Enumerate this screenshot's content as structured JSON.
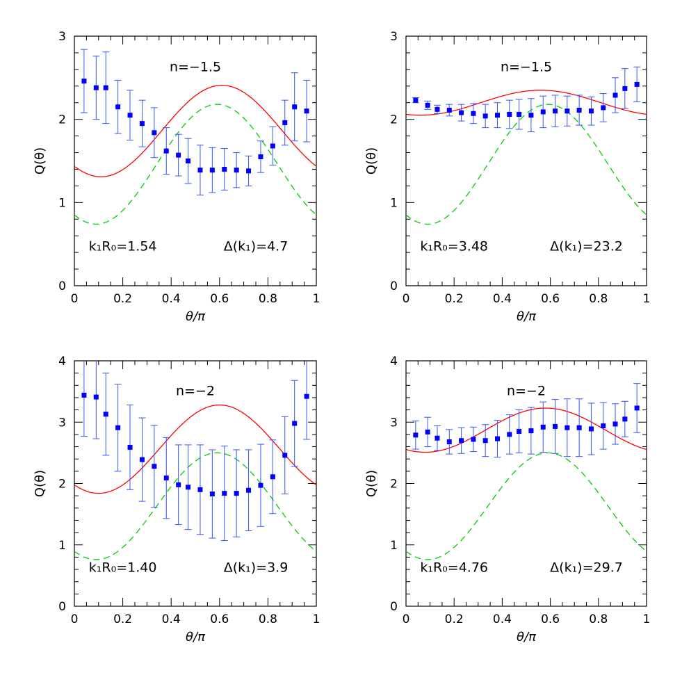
{
  "chart_data": [
    {
      "type": "scatter",
      "annotation_n": "n=−1.5",
      "annotation_kR": "k₁R₀=1.54",
      "annotation_delta": "Δ(k₁)=4.7",
      "xlabel": "θ/π",
      "ylabel": "Q(θ)",
      "xlim": [
        0,
        1
      ],
      "ylim": [
        0,
        3
      ],
      "xticks": [
        "0",
        "0.2",
        "0.4",
        "0.6",
        "0.8",
        "1"
      ],
      "yticks": [
        "0",
        "1",
        "2",
        "3"
      ],
      "ytick_values": [
        0,
        1,
        2,
        3
      ],
      "grid": false,
      "series": [
        {
          "kind": "points_with_errorbars",
          "color": "#0000ff",
          "x": [
            0.04,
            0.09,
            0.13,
            0.18,
            0.23,
            0.28,
            0.33,
            0.38,
            0.43,
            0.47,
            0.52,
            0.57,
            0.62,
            0.67,
            0.72,
            0.77,
            0.82,
            0.87,
            0.91,
            0.96
          ],
          "y": [
            2.46,
            2.38,
            2.38,
            2.15,
            2.05,
            1.95,
            1.84,
            1.62,
            1.57,
            1.5,
            1.39,
            1.39,
            1.4,
            1.39,
            1.38,
            1.55,
            1.68,
            1.96,
            2.15,
            2.1
          ],
          "err": [
            0.38,
            0.38,
            0.43,
            0.32,
            0.3,
            0.28,
            0.3,
            0.28,
            0.25,
            0.27,
            0.3,
            0.27,
            0.25,
            0.21,
            0.18,
            0.19,
            0.23,
            0.27,
            0.41,
            0.37
          ]
        },
        {
          "kind": "line",
          "color": "#ff0000",
          "dashed": false,
          "form": "cos",
          "A": 1.86,
          "B": 0.55,
          "x0": 0.61
        },
        {
          "kind": "line",
          "color": "#00cc00",
          "dashed": true,
          "form": "cos",
          "A": 1.46,
          "B": 0.72,
          "x0": 0.59
        }
      ]
    },
    {
      "type": "scatter",
      "annotation_n": "n=−1.5",
      "annotation_kR": "k₁R₀=3.48",
      "annotation_delta": "Δ(k₁)=23.2",
      "xlabel": "θ/π",
      "ylabel": "Q(θ)",
      "xlim": [
        0,
        1
      ],
      "ylim": [
        0,
        3
      ],
      "xticks": [
        "0",
        "0.2",
        "0.4",
        "0.6",
        "0.8",
        "1"
      ],
      "yticks": [
        "0",
        "1",
        "2",
        "3"
      ],
      "ytick_values": [
        0,
        1,
        2,
        3
      ],
      "grid": false,
      "series": [
        {
          "kind": "points_with_errorbars",
          "color": "#0000ff",
          "x": [
            0.04,
            0.09,
            0.13,
            0.18,
            0.23,
            0.28,
            0.33,
            0.38,
            0.43,
            0.47,
            0.52,
            0.57,
            0.62,
            0.67,
            0.72,
            0.77,
            0.82,
            0.87,
            0.91,
            0.96
          ],
          "y": [
            2.23,
            2.17,
            2.12,
            2.11,
            2.08,
            2.07,
            2.04,
            2.05,
            2.06,
            2.06,
            2.05,
            2.09,
            2.1,
            2.1,
            2.11,
            2.1,
            2.14,
            2.29,
            2.37,
            2.42
          ],
          "err": [
            0.03,
            0.05,
            0.05,
            0.07,
            0.1,
            0.12,
            0.14,
            0.15,
            0.17,
            0.18,
            0.2,
            0.19,
            0.19,
            0.18,
            0.18,
            0.17,
            0.17,
            0.21,
            0.24,
            0.21
          ]
        },
        {
          "kind": "line",
          "color": "#ff0000",
          "dashed": false,
          "form": "cos",
          "A": 2.2,
          "B": 0.15,
          "x0": 0.56
        },
        {
          "kind": "line",
          "color": "#00cc00",
          "dashed": true,
          "form": "cos",
          "A": 1.46,
          "B": 0.72,
          "x0": 0.59
        }
      ]
    },
    {
      "type": "scatter",
      "annotation_n": "n=−2",
      "annotation_kR": "k₁R₀=1.40",
      "annotation_delta": "Δ(k₁)=3.9",
      "xlabel": "θ/π",
      "ylabel": "Q(θ)",
      "xlim": [
        0,
        1
      ],
      "ylim": [
        0,
        4
      ],
      "xticks": [
        "0",
        "0.2",
        "0.4",
        "0.6",
        "0.8",
        "1"
      ],
      "yticks": [
        "0",
        "1",
        "2",
        "3",
        "4"
      ],
      "ytick_values": [
        0,
        1,
        2,
        3,
        4
      ],
      "grid": false,
      "series": [
        {
          "kind": "points_with_errorbars",
          "color": "#0000ff",
          "x": [
            0.04,
            0.09,
            0.13,
            0.18,
            0.23,
            0.28,
            0.33,
            0.38,
            0.43,
            0.47,
            0.52,
            0.57,
            0.62,
            0.67,
            0.72,
            0.77,
            0.82,
            0.87,
            0.91,
            0.96
          ],
          "y": [
            3.44,
            3.41,
            3.13,
            2.91,
            2.59,
            2.39,
            2.28,
            2.09,
            1.98,
            1.94,
            1.9,
            1.83,
            1.84,
            1.84,
            1.89,
            1.97,
            2.11,
            2.46,
            2.98,
            3.42
          ],
          "err": [
            0.67,
            0.68,
            0.67,
            0.71,
            0.69,
            0.68,
            0.67,
            0.66,
            0.65,
            0.69,
            0.73,
            0.72,
            0.77,
            0.71,
            0.66,
            0.67,
            0.6,
            0.63,
            0.7,
            0.7
          ]
        },
        {
          "kind": "line",
          "color": "#ff0000",
          "dashed": false,
          "form": "cos",
          "A": 2.56,
          "B": 0.72,
          "x0": 0.6
        },
        {
          "kind": "line",
          "color": "#00cc00",
          "dashed": true,
          "form": "cos",
          "A": 1.63,
          "B": 0.87,
          "x0": 0.59
        }
      ]
    },
    {
      "type": "scatter",
      "annotation_n": "n=−2",
      "annotation_kR": "k₁R₀=4.76",
      "annotation_delta": "Δ(k₁)=29.7",
      "xlabel": "θ/π",
      "ylabel": "Q(θ)",
      "xlim": [
        0,
        1
      ],
      "ylim": [
        0,
        4
      ],
      "xticks": [
        "0",
        "0.2",
        "0.4",
        "0.6",
        "0.8",
        "1"
      ],
      "yticks": [
        "0",
        "1",
        "2",
        "3",
        "4"
      ],
      "ytick_values": [
        0,
        1,
        2,
        3,
        4
      ],
      "grid": false,
      "series": [
        {
          "kind": "points_with_errorbars",
          "color": "#0000ff",
          "x": [
            0.04,
            0.09,
            0.13,
            0.18,
            0.23,
            0.28,
            0.33,
            0.38,
            0.43,
            0.47,
            0.52,
            0.57,
            0.62,
            0.67,
            0.72,
            0.77,
            0.82,
            0.87,
            0.91,
            0.96
          ],
          "y": [
            2.79,
            2.84,
            2.74,
            2.68,
            2.7,
            2.72,
            2.7,
            2.73,
            2.8,
            2.85,
            2.86,
            2.92,
            2.93,
            2.91,
            2.91,
            2.89,
            2.94,
            2.97,
            3.05,
            3.23
          ],
          "err": [
            0.23,
            0.24,
            0.2,
            0.2,
            0.21,
            0.2,
            0.26,
            0.3,
            0.32,
            0.35,
            0.38,
            0.41,
            0.44,
            0.47,
            0.47,
            0.42,
            0.38,
            0.33,
            0.29,
            0.4
          ]
        },
        {
          "kind": "line",
          "color": "#ff0000",
          "dashed": false,
          "form": "cos",
          "A": 2.87,
          "B": 0.36,
          "x0": 0.58
        },
        {
          "kind": "line",
          "color": "#00cc00",
          "dashed": true,
          "form": "cos",
          "A": 1.63,
          "B": 0.87,
          "x0": 0.59
        }
      ]
    }
  ]
}
